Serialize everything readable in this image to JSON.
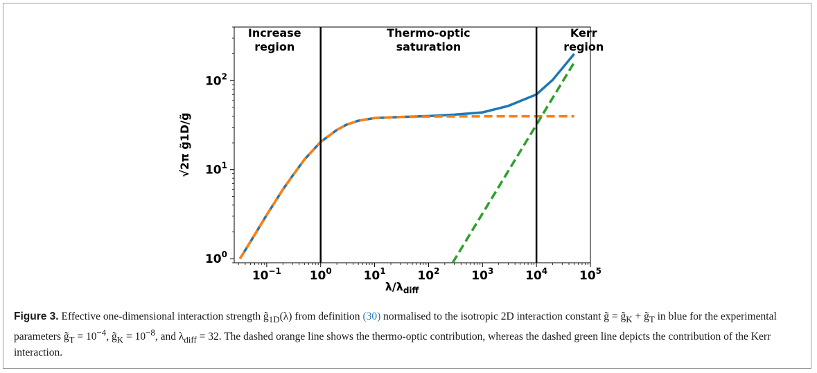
{
  "chart_data": {
    "type": "line",
    "x_scale": "log",
    "y_scale": "log",
    "xlim": [
      0.025,
      100000
    ],
    "ylim": [
      0.9,
      400
    ],
    "xlabel_main": "λ/λ",
    "xlabel_sub": "diff",
    "ylabel": "√2π g̃1D/g̃",
    "x_ticks": [
      {
        "value": 0.1,
        "base": "10",
        "exp": "−1"
      },
      {
        "value": 1,
        "base": "10",
        "exp": "0"
      },
      {
        "value": 10,
        "base": "10",
        "exp": "1"
      },
      {
        "value": 100,
        "base": "10",
        "exp": "2"
      },
      {
        "value": 1000,
        "base": "10",
        "exp": "3"
      },
      {
        "value": 10000,
        "base": "10",
        "exp": "4"
      },
      {
        "value": 100000,
        "base": "10",
        "exp": "5"
      }
    ],
    "y_ticks": [
      {
        "value": 1,
        "base": "10",
        "exp": "0"
      },
      {
        "value": 10,
        "base": "10",
        "exp": "1"
      },
      {
        "value": 100,
        "base": "10",
        "exp": "2"
      }
    ],
    "vlines": [
      1,
      10000
    ],
    "regions": [
      {
        "lines": [
          "Increase",
          "region"
        ],
        "x": 0.14
      },
      {
        "lines": [
          "Thermo-optic",
          "saturation"
        ],
        "x": 100
      },
      {
        "lines": [
          "Kerr",
          "region"
        ],
        "x": 75000
      }
    ],
    "series": [
      {
        "color": "#1f77b4",
        "style": "solid",
        "x": [
          0.032,
          0.05,
          0.1,
          0.2,
          0.3,
          0.5,
          1,
          2,
          3,
          5,
          10,
          30,
          100,
          300,
          1000,
          3000,
          10000,
          20000,
          50000
        ],
        "y": [
          1.0,
          1.55,
          3.1,
          6.0,
          8.5,
          13.0,
          20.5,
          28.0,
          32.0,
          35.5,
          38.0,
          39.0,
          40.0,
          41.5,
          44.0,
          52.0,
          70.0,
          102.0,
          200.0
        ]
      },
      {
        "color": "#ff7f0e",
        "style": "dashed",
        "x": [
          0.032,
          0.05,
          0.1,
          0.2,
          0.3,
          0.5,
          1,
          2,
          3,
          5,
          10,
          30,
          100,
          1000,
          10000,
          50000
        ],
        "y": [
          1.0,
          1.55,
          3.1,
          6.0,
          8.5,
          13.0,
          20.5,
          28.0,
          32.0,
          35.5,
          38.0,
          39.0,
          39.5,
          39.7,
          39.8,
          39.8
        ]
      },
      {
        "color": "#2ca02c",
        "style": "dashed",
        "x": [
          280,
          50000
        ],
        "y": [
          0.9,
          160
        ]
      }
    ]
  },
  "caption": {
    "label": "Figure 3.",
    "text_1": " Effective one-dimensional interaction strength g̃",
    "sub_1d": "1D",
    "text_2": "(λ) from definition ",
    "ref": "(30)",
    "text_3": " normalised to the isotropic 2D interaction constant g̃ = g̃",
    "sub_k": "K",
    "text_4": " + g̃",
    "sub_t": "T",
    "text_5": " in blue for the experimental parameters g̃",
    "sub_t2": "T",
    "text_6": " = 10",
    "sup_t": "−4",
    "text_7": ", g̃",
    "sub_k2": "K",
    "text_8": " = 10",
    "sup_k": "−8",
    "text_9": ", and λ",
    "sub_diff": "diff",
    "text_10": " = 32. The dashed orange line shows the thermo-optic contribution, whereas the dashed green line depicts the contribution of the Kerr interaction."
  }
}
